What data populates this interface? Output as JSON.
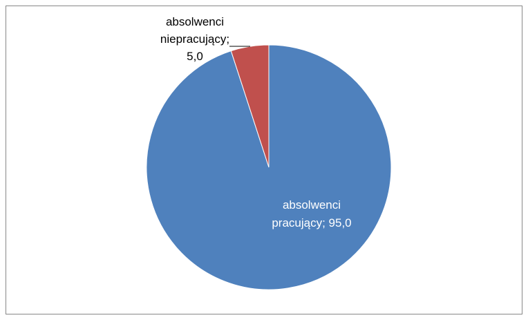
{
  "chart_data": {
    "type": "pie",
    "title": "",
    "slices": [
      {
        "label": "absolwenci pracujący",
        "value": 95.0,
        "value_text": "95,0",
        "color": "#4F81BD",
        "label_color": "#FFFFFF",
        "label_lines": [
          "absolwenci",
          "pracujący; 95,0"
        ]
      },
      {
        "label": "absolwenci niepracujący",
        "value": 5.0,
        "value_text": "5,0",
        "color": "#C0504D",
        "label_color": "#000000",
        "label_lines": [
          "absolwenci",
          "niepracujący;",
          "5,0"
        ]
      }
    ],
    "start_angle_deg": 0,
    "direction": "clockwise",
    "legend": "none"
  }
}
